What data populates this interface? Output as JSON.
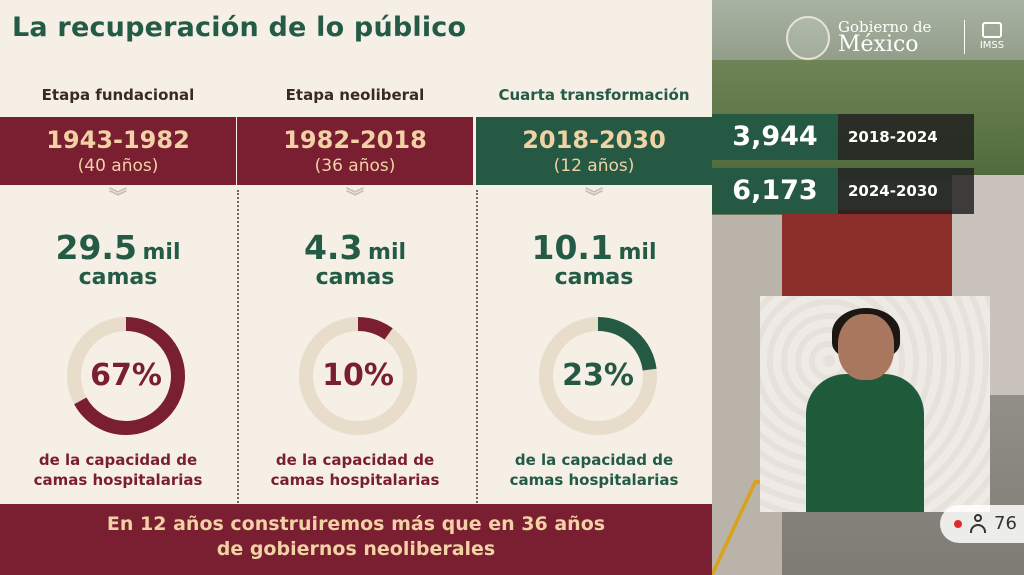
{
  "slide": {
    "title": "La recuperación de lo público",
    "columns": [
      {
        "heading": "Etapa fundacional",
        "years": "1943-1982",
        "duration": "(40 años)",
        "beds_number": "29.5",
        "beds_unit": "mil",
        "beds_label": "camas",
        "percent_label": "67%",
        "percent_value": 0.67,
        "caption_line1": "de la capacidad de",
        "caption_line2": "camas hospitalarias"
      },
      {
        "heading": "Etapa neoliberal",
        "years": "1982-2018",
        "duration": "(36 años)",
        "beds_number": "4.3",
        "beds_unit": "mil",
        "beds_label": "camas",
        "percent_label": "10%",
        "percent_value": 0.1,
        "caption_line1": "de la capacidad de",
        "caption_line2": "camas hospitalarias"
      },
      {
        "heading": "Cuarta transformación",
        "years": "2018-2030",
        "duration": "(12 años)",
        "beds_number": "10.1",
        "beds_unit": "mil",
        "beds_label": "camas",
        "percent_label": "23%",
        "percent_value": 0.23,
        "caption_line1": "de la capacidad de",
        "caption_line2": "camas hospitalarias"
      }
    ],
    "footer_line1": "En 12 años construiremos más que en 36 años",
    "footer_line2": "de  gobiernos neoliberales"
  },
  "logo": {
    "gov_line1": "Gobierno de",
    "gov_line2": "México",
    "imss": "IMSS"
  },
  "stats": [
    {
      "value": "3,944",
      "period": "2018-2024"
    },
    {
      "value": "6,173",
      "period": "2024-2030"
    }
  ],
  "viewers": {
    "count": "76"
  },
  "colors": {
    "maroon": "#7a1e31",
    "green": "#255944",
    "gold": "#f0d2a4",
    "ring_track": "#e8dccb"
  }
}
